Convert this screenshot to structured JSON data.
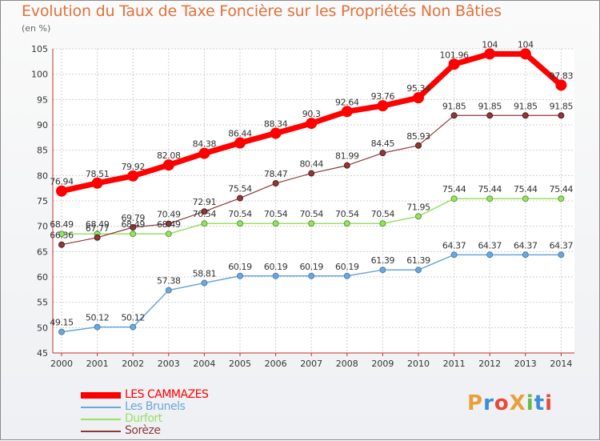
{
  "title": "Evolution du Taux de Taxe Foncière sur les Propriétés Non Bâties",
  "unit_label": "(en %)",
  "logo": {
    "text": "ProXiti",
    "colors": [
      "#e8a13a",
      "#3a8ed8",
      "#e84a3a",
      "#e8a13a",
      "#6ab84a",
      "#3a8ed8",
      "#e84a3a"
    ]
  },
  "chart_data": {
    "type": "line",
    "x": [
      "2000",
      "2001",
      "2002",
      "2003",
      "2004",
      "2005",
      "2006",
      "2007",
      "2008",
      "2009",
      "2010",
      "2011",
      "2012",
      "2013",
      "2014"
    ],
    "ylim": [
      45,
      105
    ],
    "yticks": [
      "45",
      "50",
      "55",
      "60",
      "65",
      "70",
      "75",
      "80",
      "85",
      "90",
      "95",
      "100",
      "105"
    ],
    "grid": true,
    "legend_position": "bottom-left",
    "series": [
      {
        "name": "LES CAMMAZES",
        "color": "#ff0000",
        "values": [
          76.94,
          78.51,
          79.92,
          82.08,
          84.38,
          86.44,
          88.34,
          90.3,
          92.64,
          93.76,
          95.34,
          101.96,
          104,
          104,
          97.83
        ],
        "labels": [
          "76.94",
          "78.51",
          "79.92",
          "82.08",
          "84.38",
          "86.44",
          "88.34",
          "90.3",
          "92.64",
          "93.76",
          "95.34",
          "101.96",
          "104",
          "104",
          "97.83"
        ]
      },
      {
        "name": "Les Brunels",
        "color": "#6ba7d9",
        "values": [
          49.15,
          50.12,
          50.12,
          57.38,
          58.81,
          60.19,
          60.19,
          60.19,
          60.19,
          61.39,
          61.39,
          64.37,
          64.37,
          64.37,
          64.37
        ],
        "labels": [
          "49.15",
          "50.12",
          "50.12",
          "57.38",
          "58.81",
          "60.19",
          "60.19",
          "60.19",
          "60.19",
          "61.39",
          "61.39",
          "64.37",
          "64.37",
          "64.37",
          "64.37"
        ]
      },
      {
        "name": "Durfort",
        "color": "#99e066",
        "values": [
          68.49,
          68.49,
          68.49,
          68.49,
          70.54,
          70.54,
          70.54,
          70.54,
          70.54,
          70.54,
          71.95,
          75.44,
          75.44,
          75.44,
          75.44
        ],
        "labels": [
          "68.49",
          "68.49",
          "68.49",
          "68.49",
          "70.54",
          "70.54",
          "70.54",
          "70.54",
          "70.54",
          "70.54",
          "71.95",
          "75.44",
          "75.44",
          "75.44",
          "75.44"
        ]
      },
      {
        "name": "Sorèze",
        "color": "#8b3a3a",
        "values": [
          66.36,
          67.77,
          69.79,
          70.49,
          72.91,
          75.54,
          78.47,
          80.44,
          81.99,
          84.45,
          85.93,
          91.85,
          91.85,
          91.85,
          91.85
        ],
        "labels": [
          "66.36",
          "67.77",
          "69.79",
          "70.49",
          "72.91",
          "75.54",
          "78.47",
          "80.44",
          "81.99",
          "84.45",
          "85.93",
          "91.85",
          "91.85",
          "91.85",
          "91.85"
        ]
      }
    ]
  }
}
